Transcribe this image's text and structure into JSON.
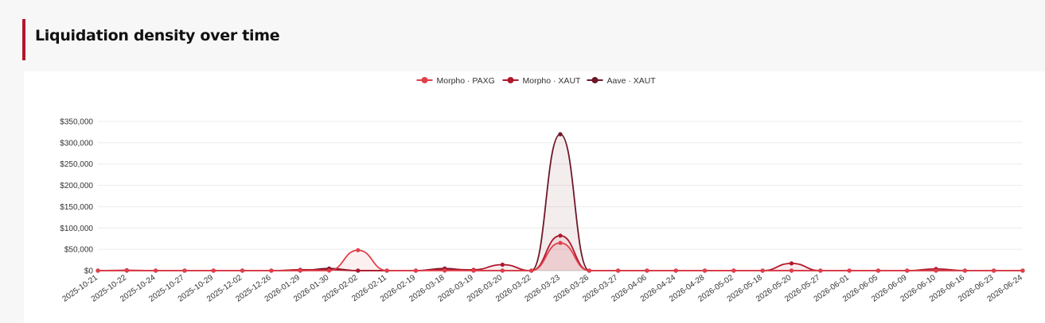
{
  "page": {
    "title": "Liquidation density over time"
  },
  "chart_data": {
    "type": "area",
    "title": "",
    "xlabel": "",
    "ylabel": "",
    "ylim": [
      0,
      350000
    ],
    "y_ticks": [
      "$0",
      "$50,000",
      "$100,000",
      "$150,000",
      "$200,000",
      "$250,000",
      "$300,000",
      "$350,000"
    ],
    "y_tick_values": [
      0,
      50000,
      100000,
      150000,
      200000,
      250000,
      300000,
      350000
    ],
    "grid": true,
    "legend_position": "top-center",
    "categories": [
      "2025-10-21",
      "2025-10-22",
      "2025-10-24",
      "2025-10-27",
      "2025-10-29",
      "2025-12-02",
      "2025-12-26",
      "2026-01-29",
      "2026-01-30",
      "2026-02-02",
      "2026-02-11",
      "2026-02-19",
      "2026-03-18",
      "2026-03-19",
      "2026-03-20",
      "2026-03-22",
      "2026-03-23",
      "2026-03-26",
      "2026-03-27",
      "2026-04-06",
      "2026-04-24",
      "2026-04-28",
      "2026-05-02",
      "2026-05-18",
      "2026-05-20",
      "2026-05-27",
      "2026-06-01",
      "2026-06-05",
      "2026-06-09",
      "2026-06-10",
      "2026-06-16",
      "2026-06-23",
      "2026-06-24"
    ],
    "series": [
      {
        "name": "Morpho · PAXG",
        "color": "#e0404a",
        "values": [
          0,
          0,
          0,
          0,
          0,
          0,
          0,
          0,
          0,
          48000,
          0,
          0,
          0,
          0,
          0,
          0,
          65000,
          0,
          0,
          0,
          0,
          0,
          0,
          0,
          0,
          0,
          0,
          0,
          0,
          0,
          0,
          0,
          0
        ]
      },
      {
        "name": "Morpho · XAUT",
        "color": "#b0182c",
        "values": [
          0,
          1000,
          0,
          0,
          0,
          0,
          0,
          2000,
          2000,
          0,
          0,
          0,
          3000,
          2000,
          14000,
          0,
          82000,
          0,
          0,
          0,
          0,
          0,
          0,
          0,
          17000,
          0,
          0,
          0,
          0,
          4000,
          0,
          0,
          0
        ]
      },
      {
        "name": "Aave · XAUT",
        "color": "#6e1628",
        "values": [
          0,
          0,
          0,
          0,
          0,
          0,
          0,
          0,
          5000,
          0,
          0,
          0,
          5000,
          0,
          0,
          0,
          320000,
          0,
          0,
          0,
          0,
          0,
          0,
          0,
          0,
          0,
          0,
          0,
          0,
          0,
          0,
          0,
          0
        ]
      }
    ]
  }
}
